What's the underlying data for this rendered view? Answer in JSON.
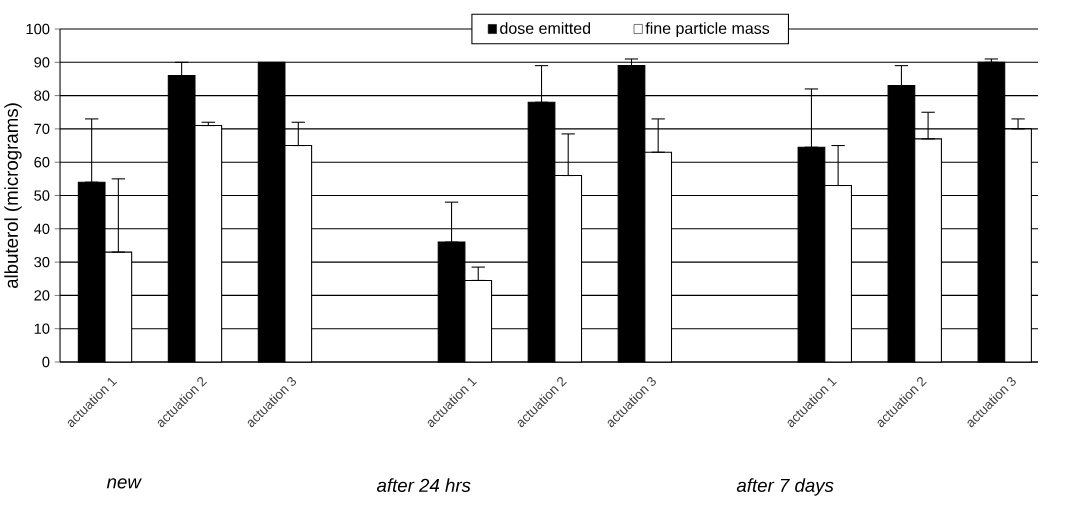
{
  "chart_data": {
    "type": "bar",
    "ylabel": "albuterol (micrograms)",
    "categories": [
      "actuation 1",
      "actuation 2",
      "actuation 3",
      null,
      "actuation 1",
      "actuation 2",
      "actuation 3",
      null,
      "actuation 1",
      "actuation 2",
      "actuation 3"
    ],
    "series": [
      {
        "name": "dose emitted",
        "color": "#000000",
        "values": [
          54,
          86,
          90,
          null,
          36,
          78,
          89,
          null,
          64.5,
          83,
          90
        ],
        "errors": [
          [
            54,
            73
          ],
          [
            86,
            90
          ],
          null,
          null,
          [
            36,
            48
          ],
          [
            78,
            89
          ],
          [
            89,
            91
          ],
          null,
          [
            64.5,
            82
          ],
          [
            83,
            89
          ],
          [
            90,
            91
          ]
        ]
      },
      {
        "name": "fine particle mass",
        "color": "#ffffff",
        "values": [
          33,
          71,
          65,
          null,
          24.5,
          56,
          63,
          null,
          53,
          67,
          70
        ],
        "errors": [
          [
            33,
            55
          ],
          [
            71,
            72
          ],
          [
            65,
            72
          ],
          null,
          [
            24.5,
            28.5
          ],
          [
            56,
            68.5
          ],
          [
            63,
            73
          ],
          null,
          [
            53,
            65
          ],
          [
            67,
            75
          ],
          [
            70,
            73
          ]
        ]
      }
    ],
    "ylim": [
      0,
      100
    ],
    "yticks": [
      0,
      10,
      20,
      30,
      40,
      50,
      60,
      70,
      80,
      90,
      100
    ],
    "grid": "y",
    "legend": "top",
    "annotations": [
      "new",
      "after 24 hrs",
      "after 7 days"
    ]
  }
}
